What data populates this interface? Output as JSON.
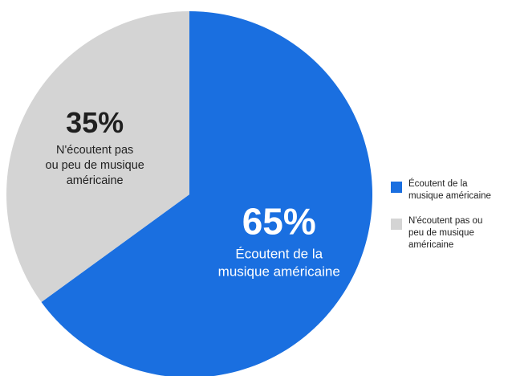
{
  "chart_data": {
    "type": "pie",
    "slices": [
      {
        "label": "Écoutent de la musique américaine",
        "value": 65,
        "display_value": "65%",
        "inside_lines": [
          "Écoutent de la",
          "musique américaine"
        ],
        "legend_lines": [
          "Écoutent de la",
          "musique américaine"
        ],
        "color": "#1a6fe0",
        "text_color": "#ffffff"
      },
      {
        "label": "N'écoutent pas ou peu de musique américaine",
        "value": 35,
        "display_value": "35%",
        "inside_lines": [
          "N'écoutent pas",
          "ou peu de musique",
          "américaine"
        ],
        "legend_lines": [
          "N'écoutent pas ou",
          "peu de musique",
          "américaine"
        ],
        "color": "#d4d4d4",
        "text_color": "#1f1f1f"
      }
    ],
    "start_angle_deg": 0,
    "direction": "clockwise",
    "legend_position": "right"
  }
}
